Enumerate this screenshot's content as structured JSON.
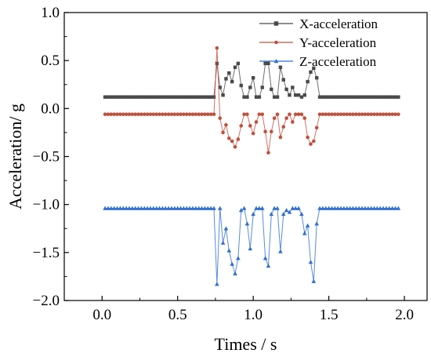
{
  "chart_data": {
    "type": "line",
    "title": "",
    "xlabel": "Times / s",
    "ylabel": "Acceleration/ g",
    "xlim": [
      -0.25,
      2.15
    ],
    "ylim": [
      -2.0,
      1.0
    ],
    "x_ticks": [
      0.0,
      0.5,
      1.0,
      1.5,
      2.0
    ],
    "x_tick_labels": [
      "0.0",
      "0.5",
      "1.0",
      "1.5",
      "2.0"
    ],
    "y_ticks": [
      -2.0,
      -1.5,
      -1.0,
      -0.5,
      0.0,
      0.5,
      1.0
    ],
    "y_tick_labels": [
      "−2.0",
      "−1.5",
      "−1.0",
      "−0.5",
      "0.0",
      "0.5",
      "1.0"
    ],
    "grid": false,
    "legend_position": "top-right",
    "series": [
      {
        "name": "X-acceleration",
        "color": "#4a4a4a",
        "marker": "square",
        "baseline": 0.12,
        "x_start": 0.02,
        "x_end": 1.96,
        "active_x": [
          0.76,
          0.78,
          0.8,
          0.82,
          0.84,
          0.86,
          0.88,
          0.9,
          0.92,
          0.94,
          0.96,
          0.98,
          1.0,
          1.02,
          1.04,
          1.06,
          1.08,
          1.1,
          1.12,
          1.14,
          1.16,
          1.18,
          1.2,
          1.22,
          1.24,
          1.26,
          1.28,
          1.3,
          1.32,
          1.34,
          1.36,
          1.38,
          1.4,
          1.42
        ],
        "active_y": [
          0.47,
          0.22,
          0.14,
          0.31,
          0.37,
          0.28,
          0.43,
          0.47,
          0.24,
          0.12,
          0.12,
          0.22,
          0.32,
          0.12,
          0.12,
          0.22,
          0.47,
          0.47,
          0.2,
          0.12,
          0.12,
          0.43,
          0.3,
          0.2,
          0.14,
          0.22,
          0.14,
          0.14,
          0.12,
          0.14,
          0.28,
          0.38,
          0.42,
          0.32
        ]
      },
      {
        "name": "Y-acceleration",
        "color": "#c0503c",
        "marker": "circle",
        "baseline": -0.06,
        "x_start": 0.02,
        "x_end": 1.96,
        "active_x": [
          0.76,
          0.78,
          0.8,
          0.82,
          0.84,
          0.86,
          0.88,
          0.9,
          0.92,
          0.94,
          0.96,
          0.98,
          1.0,
          1.02,
          1.04,
          1.06,
          1.08,
          1.1,
          1.12,
          1.14,
          1.16,
          1.18,
          1.2,
          1.22,
          1.24,
          1.26,
          1.28,
          1.3,
          1.32,
          1.34,
          1.36,
          1.38,
          1.4,
          1.42
        ],
        "active_y": [
          0.63,
          -0.1,
          -0.25,
          -0.17,
          -0.31,
          -0.34,
          -0.4,
          -0.32,
          -0.18,
          -0.06,
          -0.06,
          -0.18,
          -0.26,
          -0.14,
          -0.06,
          -0.06,
          -0.24,
          -0.46,
          -0.24,
          -0.1,
          -0.06,
          -0.3,
          -0.19,
          -0.1,
          -0.06,
          -0.14,
          -0.06,
          -0.06,
          -0.06,
          -0.1,
          -0.3,
          -0.37,
          -0.34,
          -0.2
        ]
      },
      {
        "name": "Z-acceleration",
        "color": "#2f6fd0",
        "marker": "triangle",
        "baseline": -1.04,
        "x_start": 0.02,
        "x_end": 1.96,
        "active_x": [
          0.76,
          0.78,
          0.8,
          0.82,
          0.84,
          0.86,
          0.88,
          0.9,
          0.92,
          0.94,
          0.96,
          0.98,
          1.0,
          1.02,
          1.04,
          1.06,
          1.08,
          1.1,
          1.12,
          1.14,
          1.16,
          1.18,
          1.2,
          1.22,
          1.24,
          1.26,
          1.28,
          1.3,
          1.32,
          1.34,
          1.36,
          1.38,
          1.4,
          1.42
        ],
        "active_y": [
          -1.83,
          -1.04,
          -1.4,
          -1.25,
          -1.48,
          -1.62,
          -1.72,
          -1.56,
          -1.06,
          -1.04,
          -1.2,
          -1.46,
          -1.1,
          -1.04,
          -1.04,
          -1.04,
          -1.56,
          -1.64,
          -1.1,
          -1.04,
          -1.04,
          -1.49,
          -1.1,
          -1.06,
          -1.08,
          -1.04,
          -1.04,
          -1.04,
          -1.1,
          -1.3,
          -1.22,
          -1.6,
          -1.8,
          -1.2
        ]
      }
    ]
  }
}
